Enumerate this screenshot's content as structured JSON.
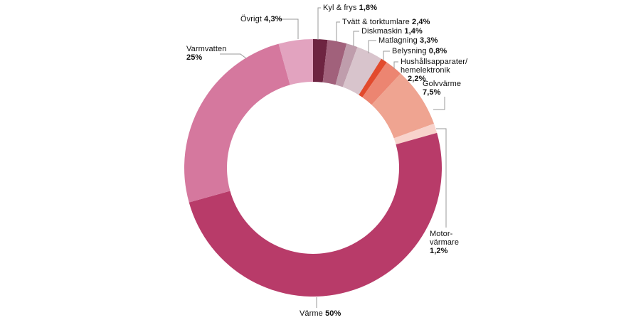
{
  "chart_data": {
    "type": "pie",
    "subtype": "donut",
    "title": "",
    "unit": "%",
    "direction": "clockwise",
    "start_angle_deg": 0,
    "legend": "none",
    "labels": "external-with-leader-lines",
    "leader_line_color": "#999999",
    "label_text_color": "#111111",
    "background_color": "#ffffff",
    "total_pct": 99.9,
    "segments": [
      {
        "id": "kyl-frys",
        "label": "Kyl & frys",
        "value": 1.8,
        "value_label": "1,8%",
        "color": "#6e2441"
      },
      {
        "id": "tvatt-torktumlare",
        "label": "Tvätt & torktumlare",
        "value": 2.4,
        "value_label": "2,4%",
        "color": "#a1617b"
      },
      {
        "id": "diskmaskin",
        "label": "Diskmaskin",
        "value": 1.4,
        "value_label": "1,4%",
        "color": "#bf9dac"
      },
      {
        "id": "matlagning",
        "label": "Matlagning",
        "value": 3.3,
        "value_label": "3,3%",
        "color": "#d8c4cc"
      },
      {
        "id": "belysning",
        "label": "Belysning",
        "value": 0.8,
        "value_label": "0,8%",
        "color": "#e24a2d"
      },
      {
        "id": "hushallsapparater",
        "label": "Hushållsapparater/hemelektronik",
        "label_lines": [
          "Hushållsapparater/",
          "hemelektronik"
        ],
        "value": 2.2,
        "value_label": "2,2%",
        "color": "#ec8571"
      },
      {
        "id": "golvvarme",
        "label": "Golvvärme",
        "label_lines": [
          "Golvvärme"
        ],
        "value": 7.5,
        "value_label": "7,5%",
        "color": "#efa491"
      },
      {
        "id": "motorvarmare",
        "label": "Motorvärmare",
        "label_lines": [
          "Motor-",
          "värmare"
        ],
        "value": 1.2,
        "value_label": "1,2%",
        "color": "#f8d3cc"
      },
      {
        "id": "varme",
        "label": "Värme",
        "value": 50,
        "value_label": "50%",
        "color": "#b83b69"
      },
      {
        "id": "varmvatten",
        "label": "Varmvatten",
        "label_lines": [
          "Varmvatten"
        ],
        "value": 25,
        "value_label": "25%",
        "color": "#d5789e"
      },
      {
        "id": "ovrigt",
        "label": "Övrigt",
        "value": 4.3,
        "value_label": "4,3%",
        "color": "#e2a3bf"
      }
    ]
  }
}
